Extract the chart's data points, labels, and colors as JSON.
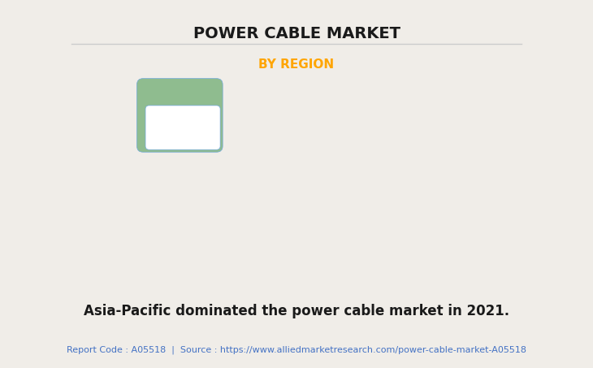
{
  "title": "POWER CABLE MARKET",
  "subtitle": "BY REGION",
  "subtitle_color": "#FFA500",
  "title_color": "#1a1a1a",
  "background_color": "#f0ede8",
  "map_description": "Asia-Pacific dominated the power cable market in 2021.",
  "report_code_text": "Report Code : A05518  |  Source : https://www.alliedmarketresearch.com/power-cable-market-A05518",
  "report_code_color": "#4472C4",
  "description_color": "#1a1a1a",
  "title_fontsize": 14,
  "subtitle_fontsize": 11,
  "description_fontsize": 12,
  "report_fontsize": 8,
  "map_green_color": "#8fbc8f",
  "map_white_color": "#ffffff",
  "map_border_color": "#6fa8dc",
  "map_shadow_color": "#808080"
}
